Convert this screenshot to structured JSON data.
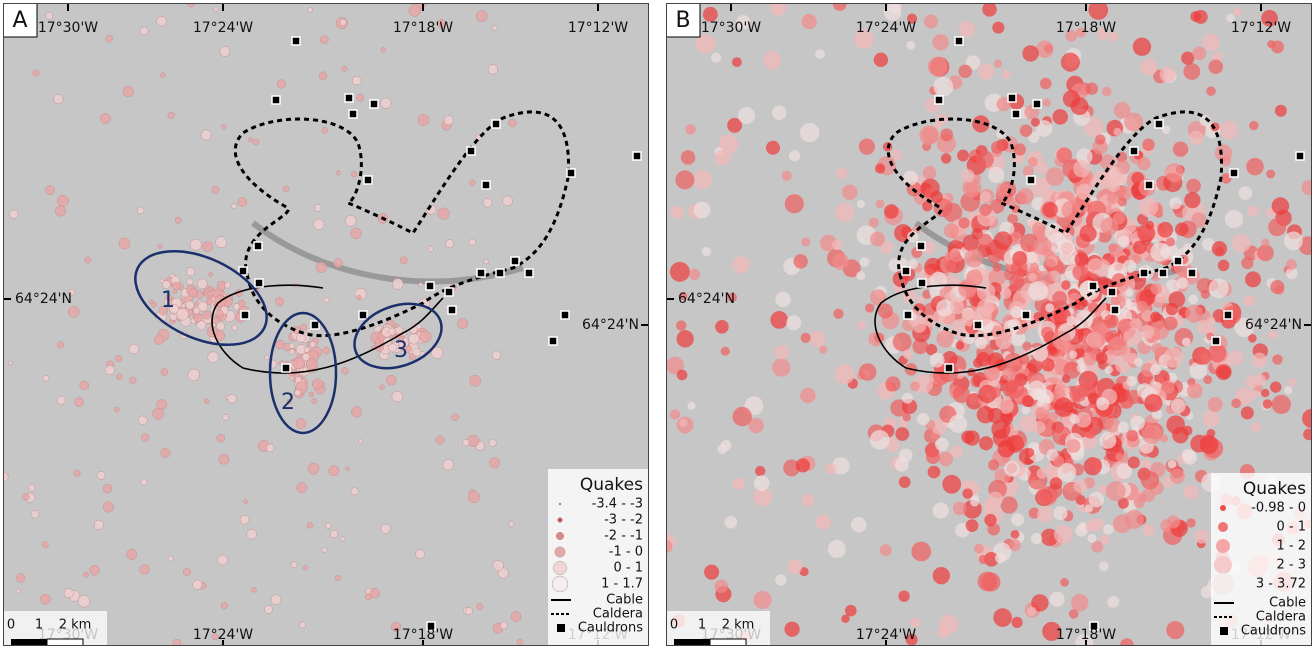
{
  "panels": [
    {
      "label": "A",
      "top_ticks": [
        "17°30'W",
        "17°24'W",
        "17°18'W",
        "17°12'W"
      ],
      "bottom_ticks": [
        "17°30'W",
        "17°24'W",
        "17°18'W",
        "17°12'W"
      ],
      "left_tick": "64°24'N",
      "right_tick": "64°24'N",
      "regions": [
        "1",
        "2",
        "3"
      ],
      "scale": [
        "0",
        "1",
        "2 km"
      ],
      "legend": {
        "title": "Quakes",
        "classes": [
          "-3.4 - -3",
          "-3 - -2",
          "-2 - -1",
          "-1 - 0",
          "0 - 1",
          "1 - 1.7"
        ],
        "lines": [
          "Cable",
          "Caldera",
          "Cauldrons"
        ]
      }
    },
    {
      "label": "B",
      "top_ticks": [
        "17°30'W",
        "17°24'W",
        "17°18'W",
        "17°12'W"
      ],
      "bottom_ticks": [
        "17°30'W",
        "17°24'W",
        "17°18'W",
        "17°12'W"
      ],
      "left_tick": "64°24'N",
      "right_tick": "64°24'N",
      "scale": [
        "0",
        "1",
        "2 km"
      ],
      "legend": {
        "title": "Quakes",
        "classes": [
          "-0.98 - 0",
          "0 - 1",
          "1 - 2",
          "2 - 3",
          "3 - 3.72"
        ],
        "lines": [
          "Cable",
          "Caldera",
          "Cauldrons"
        ]
      }
    }
  ]
}
